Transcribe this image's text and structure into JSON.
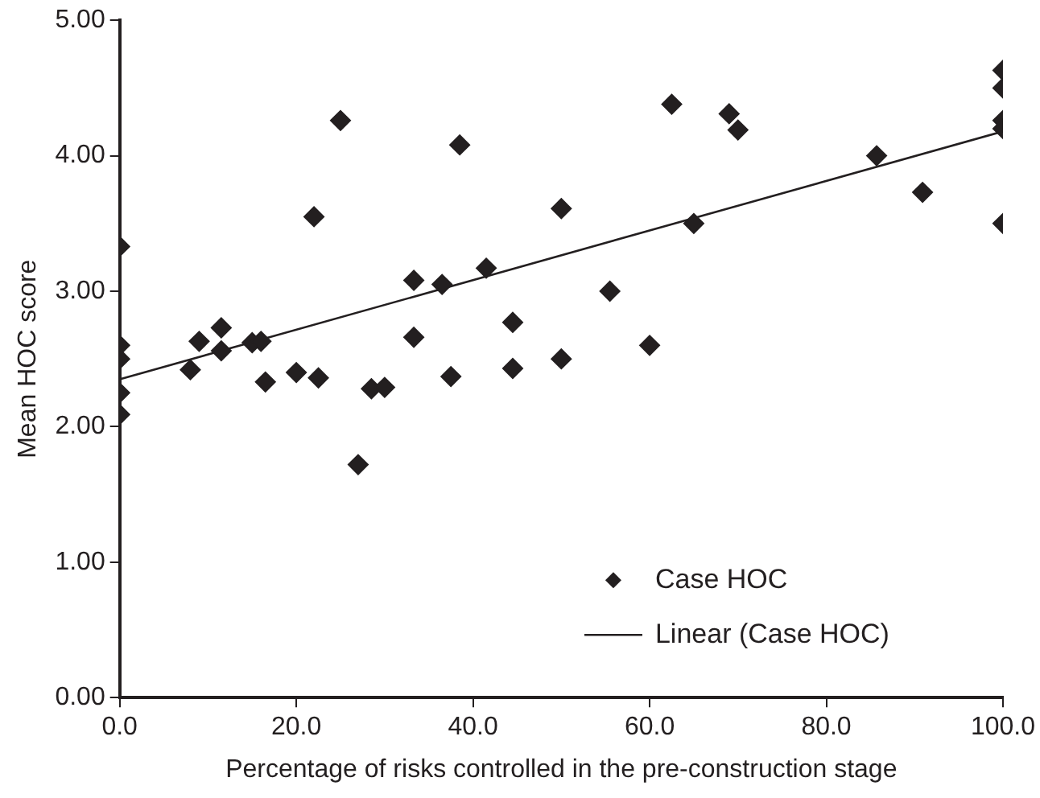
{
  "chart_data": {
    "type": "scatter",
    "xlabel": "Percentage of risks controlled in the pre-construction stage",
    "ylabel": "Mean HOC score",
    "xlim": [
      0,
      100
    ],
    "xticks": [
      {
        "value": 0,
        "label": "0.0"
      },
      {
        "value": 20,
        "label": "20.0"
      },
      {
        "value": 40,
        "label": "40.0"
      },
      {
        "value": 60,
        "label": "60.0"
      },
      {
        "value": 80,
        "label": "80.0"
      },
      {
        "value": 100,
        "label": "100.0"
      }
    ],
    "ylim": [
      0,
      5
    ],
    "yticks": [
      {
        "value": 0,
        "label": "0.00"
      },
      {
        "value": 1,
        "label": "1.00"
      },
      {
        "value": 2,
        "label": "2.00"
      },
      {
        "value": 3,
        "label": "3.00"
      },
      {
        "value": 4,
        "label": "4.00"
      },
      {
        "value": 5,
        "label": "5.00"
      }
    ],
    "grid": false,
    "legend": "bottom right",
    "series": [
      {
        "name": "Case HOC",
        "marker": "diamond",
        "color": "#231f20",
        "x": [
          0,
          0,
          0,
          0,
          0,
          8,
          9,
          11.5,
          11.5,
          15,
          16,
          16.5,
          20,
          22,
          22.5,
          25,
          27,
          28.5,
          30,
          33.3,
          33.3,
          36.5,
          37.5,
          38.5,
          41.5,
          44.5,
          44.5,
          50,
          50,
          55.5,
          60,
          62.5,
          65,
          69,
          70,
          85.7,
          90.9,
          100,
          100,
          100,
          100,
          100
        ],
        "values": [
          3.33,
          2.6,
          2.5,
          2.25,
          2.09,
          2.42,
          2.63,
          2.73,
          2.56,
          2.62,
          2.63,
          2.33,
          2.4,
          3.55,
          2.36,
          4.26,
          1.72,
          2.28,
          2.29,
          3.08,
          2.66,
          3.05,
          2.37,
          4.08,
          3.17,
          2.77,
          2.43,
          3.61,
          2.5,
          3,
          2.6,
          4.38,
          3.5,
          4.31,
          4.19,
          4,
          3.73,
          4.63,
          4.5,
          4.26,
          4.2,
          3.5
        ]
      },
      {
        "name": "Linear (Case HOC)",
        "type": "line",
        "marker": "none",
        "color": "#231f20",
        "x": [
          0,
          100
        ],
        "values": [
          2.35,
          4.18
        ]
      }
    ]
  }
}
